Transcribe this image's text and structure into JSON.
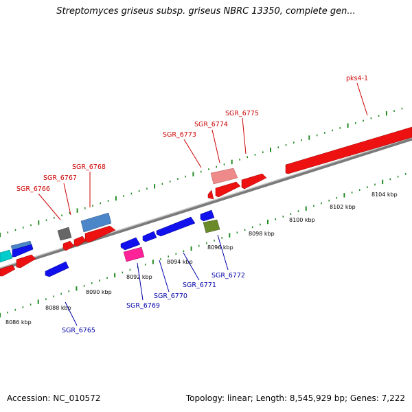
{
  "title": "Streptomyces griseus subsp. griseus NBRC 13350, complete gen...",
  "footer": {
    "accession": "Accession: NC_010572",
    "topology": "Topology: linear; Length: 8,545,929 bp; Genes: 7,222"
  },
  "colors": {
    "forward_label": "#cc0000",
    "reverse_label": "#0000aa",
    "dots": "#228b22",
    "backbone": "#888888"
  },
  "scale_ticks": [
    "8086 kbp",
    "8088 kbp",
    "8090 kbp",
    "8092 kbp",
    "8094 kbp",
    "8096 kbp",
    "8098 kbp",
    "8100 kbp",
    "8102 kbp",
    "8104 kbp"
  ],
  "forward_gene_labels": [
    "SGR_6766",
    "SGR_6767",
    "SGR_6768",
    "SGR_6773",
    "SGR_6774",
    "SGR_6775",
    "pks4-1"
  ],
  "reverse_gene_labels": [
    "SGR_6765",
    "SGR_6769",
    "SGR_6770",
    "SGR_6771",
    "SGR_6772"
  ]
}
